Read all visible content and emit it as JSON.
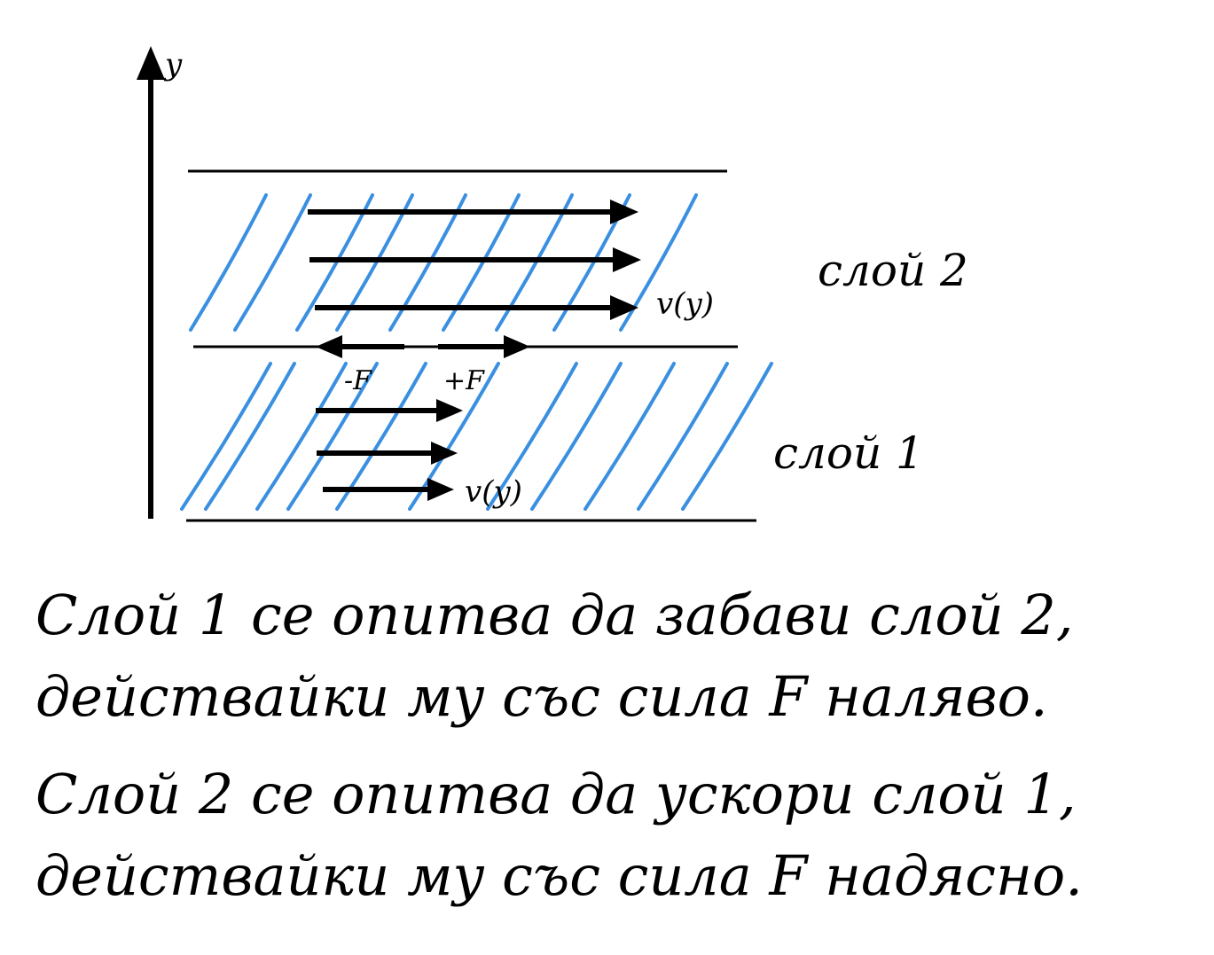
{
  "axis": {
    "y_label": "y"
  },
  "layers": {
    "top": {
      "label": "слой 2",
      "velocity_label": "v(y)"
    },
    "bottom": {
      "label": "слой 1",
      "velocity_label": "v(y)"
    }
  },
  "forces": {
    "left": "-F",
    "right": "+F"
  },
  "colors": {
    "hatch": "#3a8fe0",
    "ink": "#000000"
  },
  "captions": {
    "first": {
      "line1": "Слой 1 се опитва да забави слой 2,",
      "line2": "действайки му със сила F наляво."
    },
    "second": {
      "line1": "Слой 2 се опитва да ускори слой 1,",
      "line2": "действайки му със сила F надясно."
    }
  }
}
